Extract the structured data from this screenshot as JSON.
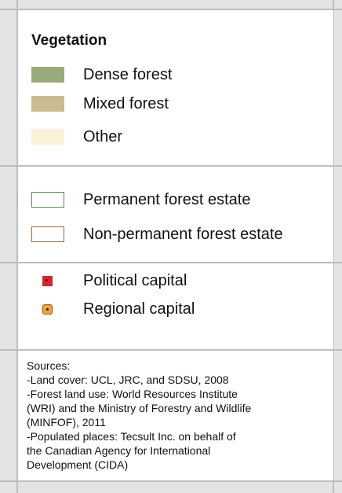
{
  "vegetation": {
    "title": "Vegetation",
    "items": [
      {
        "label": "Dense forest",
        "color": "#9aab7b"
      },
      {
        "label": "Mixed forest",
        "color": "#cbbb91"
      },
      {
        "label": "Other",
        "color": "#fdf0da"
      }
    ]
  },
  "estates": {
    "items": [
      {
        "label": "Permanent forest estate",
        "color": "#4f8a52"
      },
      {
        "label": "Non-permanent forest estate",
        "color": "#a8633c"
      }
    ]
  },
  "capitals": {
    "items": [
      {
        "label": "Political capital",
        "color": "#d8232a"
      },
      {
        "label": "Regional capital",
        "color": "#f2a33a"
      }
    ]
  },
  "sources": {
    "lines": [
      "Sources:",
      "-Land cover:  UCL, JRC, and SDSU, 2008",
      "-Forest land use:  World Resources Institute",
      "(WRI) and the Ministry of Forestry and Wildlife",
      "(MINFOF), 2011",
      "-Populated places:  Tecsult Inc. on behalf of",
      "the Canadian Agency for International",
      "Development (CIDA)"
    ]
  }
}
